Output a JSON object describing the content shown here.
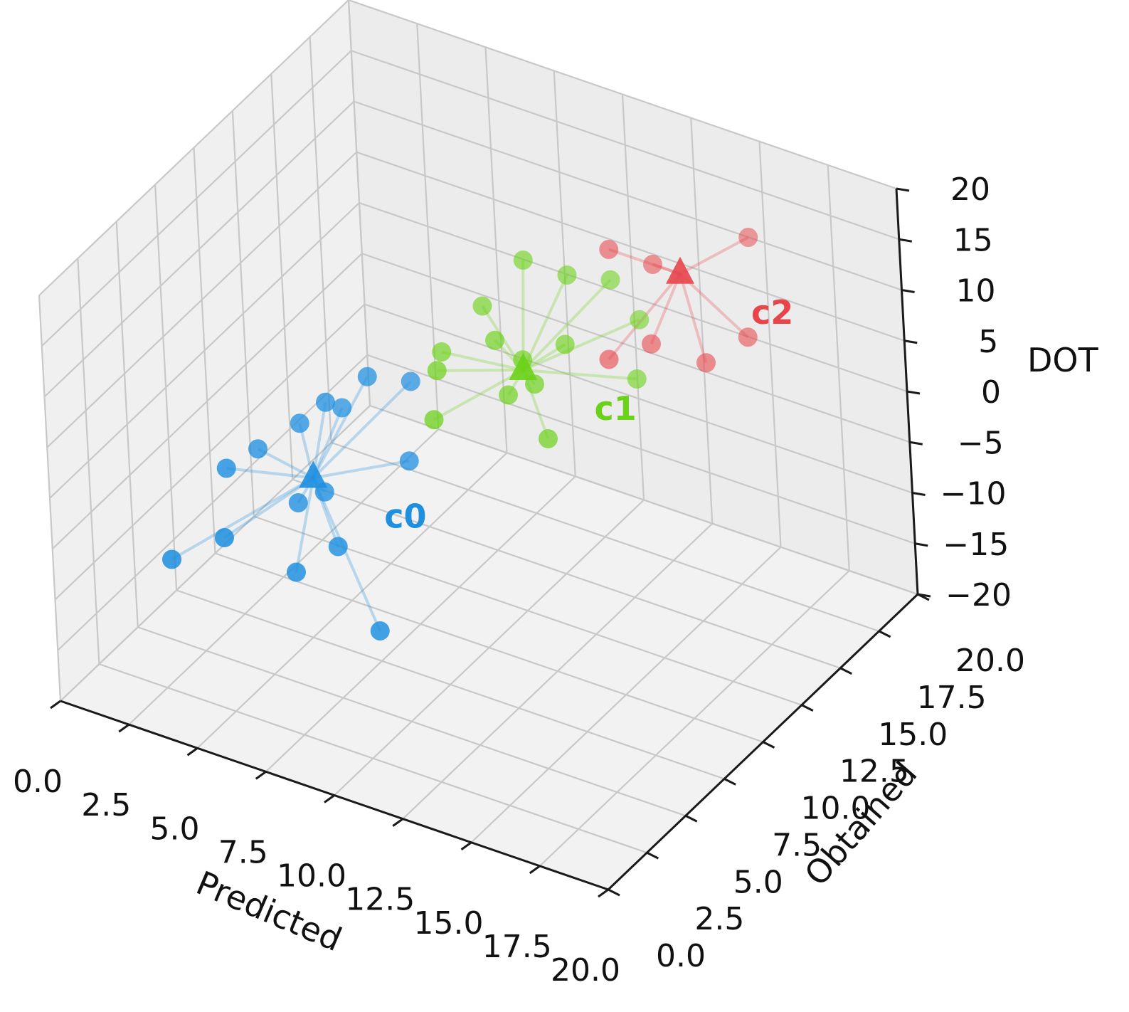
{
  "chart_data": {
    "type": "scatter",
    "projection": "3d",
    "xlabel": "Predicted",
    "ylabel": "Obtained",
    "zlabel": "DOT",
    "xlim": [
      0,
      20
    ],
    "ylim": [
      0,
      20
    ],
    "zlim": [
      -20,
      20
    ],
    "xticks": [
      "0.0",
      "2.5",
      "5.0",
      "7.5",
      "10.0",
      "12.5",
      "15.0",
      "17.5",
      "20.0"
    ],
    "yticks": [
      "0.0",
      "2.5",
      "5.0",
      "7.5",
      "10.0",
      "12.5",
      "15.0",
      "17.5",
      "20.0"
    ],
    "zticks": [
      "−20",
      "−15",
      "−10",
      "−5",
      "0",
      "5",
      "10",
      "15",
      "20"
    ],
    "grid": true,
    "clusters": [
      {
        "label": "c0",
        "color": "#1f8fe0",
        "centroid": [
          5,
          8,
          -5
        ],
        "points": [
          [
            2,
            4,
            -10
          ],
          [
            3,
            6,
            -3
          ],
          [
            4,
            4,
            -6
          ],
          [
            3,
            8,
            -4
          ],
          [
            5,
            9,
            1
          ],
          [
            6,
            10,
            3
          ],
          [
            7,
            11,
            2
          ],
          [
            8,
            9,
            -2
          ],
          [
            6,
            5,
            -9
          ],
          [
            7,
            6,
            -7
          ],
          [
            6,
            7,
            -4
          ],
          [
            5,
            7,
            -6
          ],
          [
            9,
            5,
            -12
          ],
          [
            5,
            10,
            -1
          ],
          [
            4,
            9,
            -2
          ]
        ]
      },
      {
        "label": "c1",
        "color": "#6cd119",
        "centroid": [
          10,
          13,
          3
        ],
        "points": [
          [
            7,
            13,
            2
          ],
          [
            8,
            11,
            4
          ],
          [
            9,
            9,
            3
          ],
          [
            8,
            14,
            6
          ],
          [
            9,
            15,
            10
          ],
          [
            10,
            16,
            8
          ],
          [
            11,
            17,
            7
          ],
          [
            12,
            17,
            4
          ],
          [
            13,
            15,
            2
          ],
          [
            10,
            13,
            4
          ],
          [
            11,
            14,
            5
          ],
          [
            12,
            11,
            1
          ],
          [
            11,
            12,
            4
          ],
          [
            10,
            12,
            2
          ],
          [
            9,
            13,
            5
          ]
        ]
      },
      {
        "label": "c2",
        "color": "#e8454a",
        "centroid": [
          13,
          18,
          8
        ],
        "points": [
          [
            11,
            17,
            10
          ],
          [
            12,
            18,
            8
          ],
          [
            15,
            19,
            12
          ],
          [
            16,
            17,
            6
          ],
          [
            15,
            16,
            4
          ],
          [
            12,
            15,
            3
          ],
          [
            13,
            16,
            4
          ]
        ]
      }
    ]
  }
}
